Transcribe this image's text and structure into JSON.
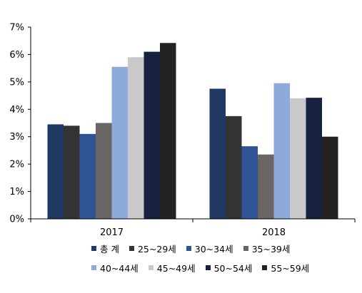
{
  "chart_data": {
    "type": "bar",
    "categories": [
      "2017",
      "2018"
    ],
    "ylim": [
      0,
      7
    ],
    "yticks": [
      "0%",
      "1%",
      "2%",
      "3%",
      "4%",
      "5%",
      "6%",
      "7%"
    ],
    "grid": false,
    "legend_position": "bottom",
    "series": [
      {
        "name": "총 계",
        "color": "#203864",
        "values": [
          3.45,
          4.75
        ]
      },
      {
        "name": "25~29세",
        "color": "#333333",
        "values": [
          3.4,
          3.75
        ]
      },
      {
        "name": "30~34세",
        "color": "#2f5496",
        "values": [
          3.1,
          2.65
        ]
      },
      {
        "name": "35~39세",
        "color": "#6b6565",
        "values": [
          3.5,
          2.35
        ]
      },
      {
        "name": "40~44세",
        "color": "#8eaadb",
        "values": [
          5.55,
          4.95
        ]
      },
      {
        "name": "45~49세",
        "color": "#c9c9c9",
        "values": [
          5.9,
          4.4
        ]
      },
      {
        "name": "50~54세",
        "color": "#16203f",
        "values": [
          6.1,
          4.42
        ]
      },
      {
        "name": "55~59세",
        "color": "#222222",
        "values": [
          6.42,
          3.0
        ]
      }
    ]
  }
}
